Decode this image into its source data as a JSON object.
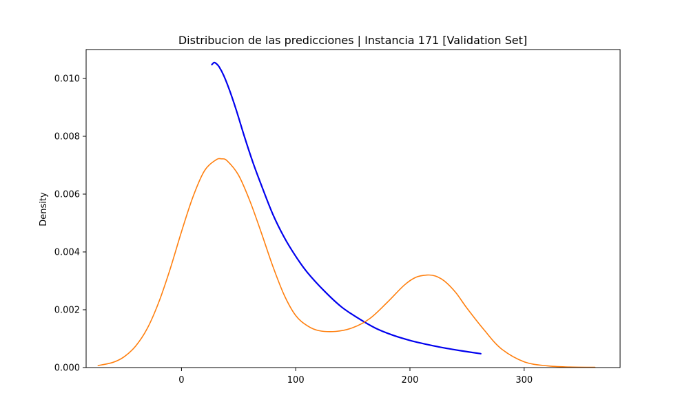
{
  "chart_data": {
    "type": "line",
    "title": "Distribucion de las predicciones | Instancia 171 [Validation Set]",
    "xlabel": "",
    "ylabel": "Density",
    "xlim": [
      -83.5,
      384
    ],
    "ylim": [
      0,
      0.011
    ],
    "x_ticks": [
      0,
      100,
      200,
      300
    ],
    "x_tick_labels": [
      "0",
      "100",
      "200",
      "300"
    ],
    "y_ticks": [
      0,
      0.002,
      0.004,
      0.006,
      0.008,
      0.01
    ],
    "y_tick_labels": [
      "0.000",
      "0.002",
      "0.004",
      "0.006",
      "0.008",
      "0.010"
    ],
    "grid": false,
    "legend": "none",
    "series": [
      {
        "color": "#0000ee",
        "x": [
          26.6,
          28.5,
          30.3,
          33.0,
          37.0,
          42.0,
          48.0,
          55.0,
          62.5,
          70.0,
          80.0,
          90.0,
          100.0,
          110.0,
          125.0,
          140.0,
          155.0,
          170.0,
          185.0,
          200.0,
          215.0,
          230.0,
          245.0,
          262.0
        ],
        "y": [
          0.01048,
          0.01055,
          0.01052,
          0.0104,
          0.0101,
          0.0096,
          0.0089,
          0.008,
          0.0071,
          0.0063,
          0.0053,
          0.0045,
          0.00385,
          0.0033,
          0.00265,
          0.0021,
          0.0017,
          0.00136,
          0.00112,
          0.00094,
          0.0008,
          0.00068,
          0.00058,
          0.00048
        ]
      },
      {
        "color": "#ff7f0e",
        "x": [
          -73,
          -60,
          -50,
          -40,
          -30,
          -20,
          -10,
          0,
          10,
          20,
          30,
          35,
          40,
          50,
          60,
          70,
          80,
          90,
          100,
          110,
          120,
          135,
          150,
          165,
          180,
          195,
          205,
          215,
          222,
          230,
          240,
          250,
          265,
          280,
          300,
          320,
          340,
          362
        ],
        "y": [
          7e-05,
          0.00018,
          0.00038,
          0.00075,
          0.00135,
          0.00225,
          0.0034,
          0.0047,
          0.0059,
          0.0068,
          0.00718,
          0.00722,
          0.00715,
          0.00665,
          0.00575,
          0.00465,
          0.0035,
          0.0025,
          0.0018,
          0.00145,
          0.00128,
          0.00125,
          0.00138,
          0.0017,
          0.00225,
          0.00285,
          0.00312,
          0.0032,
          0.00317,
          0.003,
          0.0026,
          0.00205,
          0.0013,
          0.00065,
          0.0002,
          6e-05,
          2e-05,
          1e-05
        ]
      }
    ]
  }
}
